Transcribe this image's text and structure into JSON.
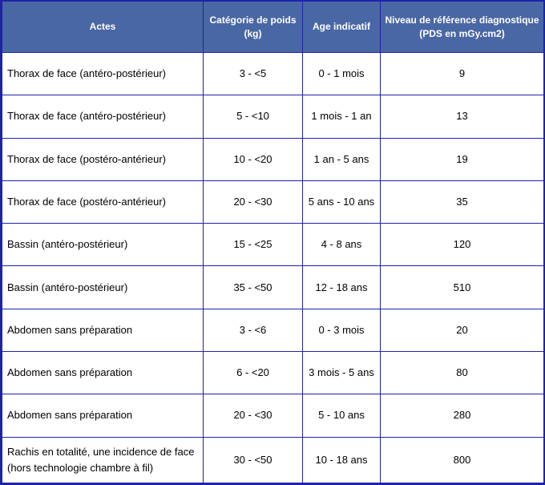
{
  "table": {
    "headers": {
      "actes": "Actes",
      "categorie_line1": "Catégorie de poids",
      "categorie_line2": "(kg)",
      "age": "Age indicatif",
      "niveau_line1": "Niveau de référence diagnostique",
      "niveau_line2": "(PDS en mGy.cm2)"
    },
    "rows": [
      {
        "acte": "Thorax de face (antéro-postérieur)",
        "poids": "3 - <5",
        "age": "0 - 1 mois",
        "niveau": "9"
      },
      {
        "acte": "Thorax de face (antéro-postérieur)",
        "poids": "5 - <10",
        "age": "1 mois - 1 an",
        "niveau": "13"
      },
      {
        "acte": "Thorax de face (postéro-antérieur)",
        "poids": "10 - <20",
        "age": "1 an - 5 ans",
        "niveau": "19"
      },
      {
        "acte": "Thorax de face (postéro-antérieur)",
        "poids": "20 - <30",
        "age": "5 ans - 10 ans",
        "niveau": "35"
      },
      {
        "acte": "Bassin (antéro-postérieur)",
        "poids": "15 - <25",
        "age": "4 - 8 ans",
        "niveau": "120"
      },
      {
        "acte": "Bassin (antéro-postérieur)",
        "poids": "35 - <50",
        "age": "12 - 18 ans",
        "niveau": "510"
      },
      {
        "acte": "Abdomen sans préparation",
        "poids": "3 - <6",
        "age": "0 - 3 mois",
        "niveau": "20"
      },
      {
        "acte": "Abdomen sans préparation",
        "poids": "6 - <20",
        "age": "3 mois - 5 ans",
        "niveau": "80"
      },
      {
        "acte": "Abdomen sans préparation",
        "poids": "20 - <30",
        "age": "5 - 10 ans",
        "niveau": "280"
      },
      {
        "acte_line1": "Rachis en totalité, une incidence de face",
        "acte_line2": "(hors technologie chambre à fil)",
        "poids": "30 - <50",
        "age": "10 - 18 ans",
        "niveau": "800"
      }
    ]
  },
  "colors": {
    "header_bg": "#4a67a5",
    "border": "#1d23a8",
    "header_text": "#ffffff"
  }
}
